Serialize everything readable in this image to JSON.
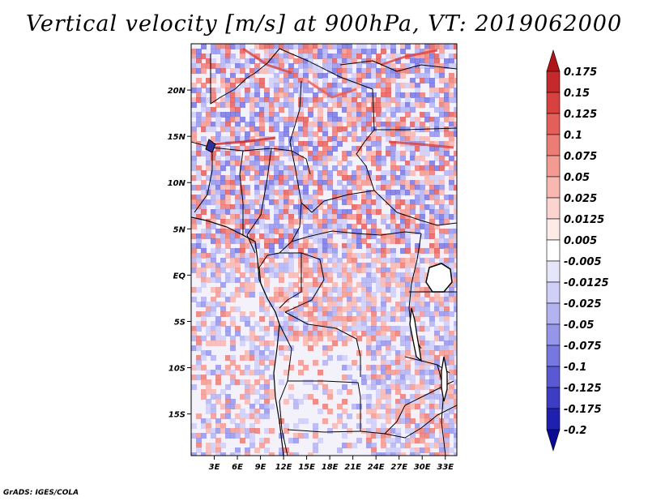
{
  "title": "Vertical velocity [m/s] at 900hPa, VT: 2019062000",
  "credit": "GrADS: IGES/COLA",
  "map": {
    "lon_labels": [
      "3E",
      "6E",
      "9E",
      "12E",
      "15E",
      "18E",
      "21E",
      "24E",
      "27E",
      "30E",
      "33E"
    ],
    "lat_labels": [
      "20N",
      "15N",
      "10N",
      "5N",
      "EQ",
      "5S",
      "10S",
      "15S"
    ],
    "lon_range": [
      0,
      34.5
    ],
    "lat_range": [
      -19.5,
      25
    ]
  },
  "colorbar": {
    "labels": [
      "0.175",
      "0.15",
      "0.125",
      "0.1",
      "0.075",
      "0.05",
      "0.025",
      "0.0125",
      "0.005",
      "-0.005",
      "-0.0125",
      "-0.025",
      "-0.05",
      "-0.075",
      "-0.1",
      "-0.125",
      "-0.175",
      "-0.2"
    ],
    "colors": [
      "#b0151a",
      "#c42a2c",
      "#d9413f",
      "#e45f5a",
      "#ec7d76",
      "#f39a92",
      "#f8b7b0",
      "#fcd4cf",
      "#fdebe8",
      "#ffffff",
      "#e6e6fb",
      "#cfcff7",
      "#b3b3f1",
      "#9595ea",
      "#7777e0",
      "#5959d4",
      "#3c3cc4",
      "#2020b0",
      "#0a0a96"
    ]
  }
}
